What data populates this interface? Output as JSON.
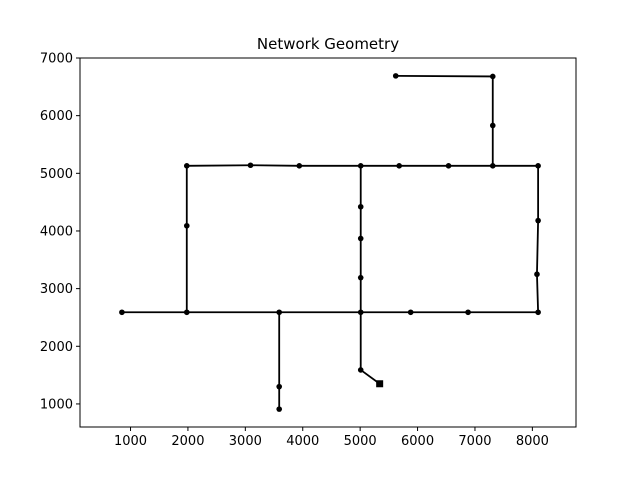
{
  "chart_data": {
    "type": "scatter",
    "title": "Network Geometry",
    "xlabel": "",
    "ylabel": "",
    "xlim": [
      120,
      8760
    ],
    "ylim": [
      600,
      7000
    ],
    "x_ticks": [
      1000,
      2000,
      3000,
      4000,
      5000,
      6000,
      7000,
      8000
    ],
    "y_ticks": [
      1000,
      2000,
      3000,
      4000,
      5000,
      6000,
      7000
    ],
    "grid": false,
    "legend": "none",
    "line_color": "#000000",
    "nodes": [
      {
        "x": 850,
        "y": 2590
      },
      {
        "x": 1980,
        "y": 2590
      },
      {
        "x": 3590,
        "y": 2590
      },
      {
        "x": 5010,
        "y": 2590
      },
      {
        "x": 5880,
        "y": 2590
      },
      {
        "x": 6880,
        "y": 2590
      },
      {
        "x": 8100,
        "y": 2590
      },
      {
        "x": 1980,
        "y": 4090
      },
      {
        "x": 1980,
        "y": 5130
      },
      {
        "x": 3090,
        "y": 5140
      },
      {
        "x": 3940,
        "y": 5130
      },
      {
        "x": 5010,
        "y": 5130
      },
      {
        "x": 5680,
        "y": 5130
      },
      {
        "x": 6540,
        "y": 5130
      },
      {
        "x": 7310,
        "y": 5130
      },
      {
        "x": 8100,
        "y": 5130
      },
      {
        "x": 5010,
        "y": 4420
      },
      {
        "x": 5010,
        "y": 3870
      },
      {
        "x": 5010,
        "y": 3190
      },
      {
        "x": 8100,
        "y": 4180
      },
      {
        "x": 8080,
        "y": 3250
      },
      {
        "x": 7310,
        "y": 5830
      },
      {
        "x": 7310,
        "y": 6680
      },
      {
        "x": 5620,
        "y": 6690
      },
      {
        "x": 3590,
        "y": 1300
      },
      {
        "x": 3590,
        "y": 910
      },
      {
        "x": 5010,
        "y": 1590
      }
    ],
    "reservoir": {
      "x": 5340,
      "y": 1350
    },
    "pipes": [
      [
        0,
        1
      ],
      [
        1,
        2
      ],
      [
        2,
        3
      ],
      [
        3,
        4
      ],
      [
        4,
        5
      ],
      [
        5,
        6
      ],
      [
        1,
        7
      ],
      [
        7,
        8
      ],
      [
        8,
        9
      ],
      [
        9,
        10
      ],
      [
        10,
        11
      ],
      [
        11,
        12
      ],
      [
        12,
        13
      ],
      [
        13,
        14
      ],
      [
        14,
        15
      ],
      [
        11,
        16
      ],
      [
        16,
        17
      ],
      [
        17,
        18
      ],
      [
        18,
        3
      ],
      [
        15,
        19
      ],
      [
        19,
        20
      ],
      [
        20,
        6
      ],
      [
        14,
        21
      ],
      [
        21,
        22
      ],
      [
        22,
        23
      ],
      [
        2,
        24
      ],
      [
        24,
        25
      ],
      [
        3,
        26
      ],
      [
        26,
        "R"
      ]
    ]
  }
}
